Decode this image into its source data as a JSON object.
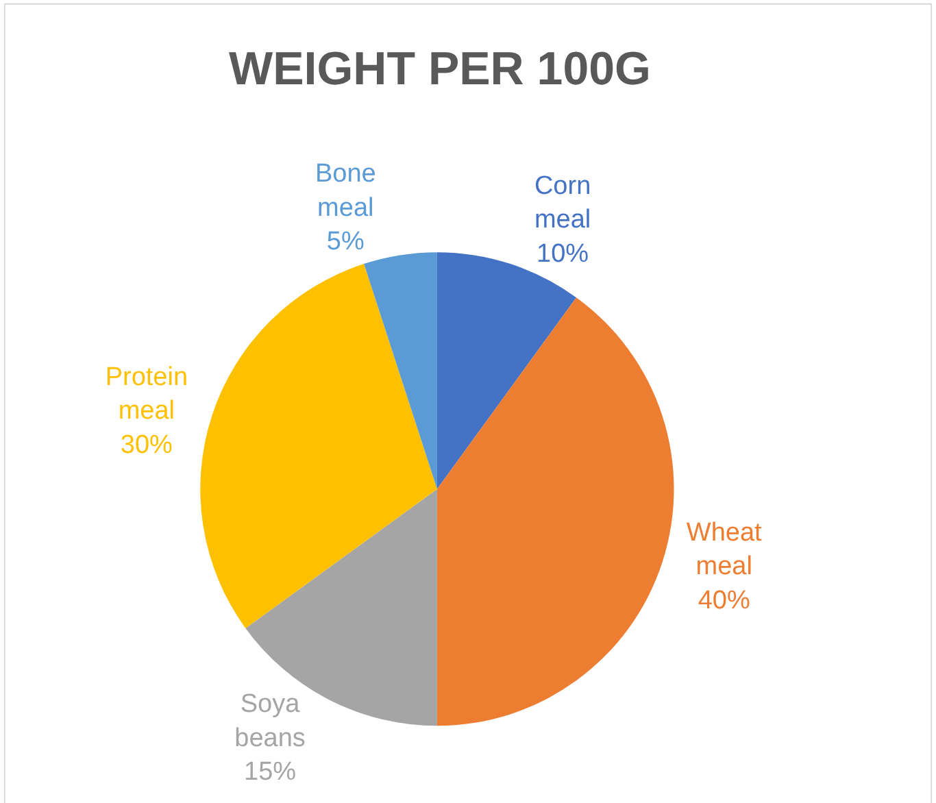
{
  "chart_data": {
    "type": "pie",
    "title": "WEIGHT PER 100G",
    "categories": [
      "Corn meal",
      "Wheat meal",
      "Soya beans",
      "Protein meal",
      "Bone meal"
    ],
    "values": [
      10,
      40,
      15,
      30,
      5
    ],
    "value_labels": [
      "10%",
      "40%",
      "15%",
      "30%",
      "5%"
    ],
    "colors": [
      "#4472c4",
      "#ed7d31",
      "#a5a5a5",
      "#ffc000",
      "#5b9bd5"
    ],
    "legend": false
  }
}
